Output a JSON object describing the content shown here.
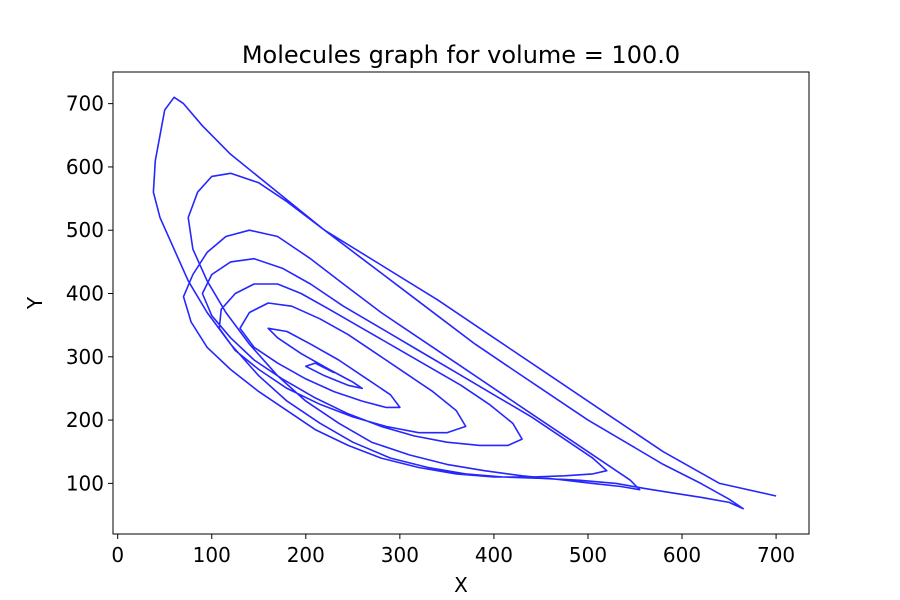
{
  "chart_data": {
    "type": "line",
    "title": "Molecules graph for volume = 100.0",
    "xlabel": "X",
    "ylabel": "Y",
    "xlim": [
      -5,
      735
    ],
    "ylim": [
      20,
      750
    ],
    "xticks": [
      0,
      100,
      200,
      300,
      400,
      500,
      600,
      700
    ],
    "yticks": [
      100,
      200,
      300,
      400,
      500,
      600,
      700
    ],
    "grid": false,
    "line_color": "#0000ff",
    "series": [
      {
        "x": [
          700,
          640,
          580,
          520,
          460,
          400,
          340,
          280,
          220,
          170,
          120,
          90,
          70,
          60,
          50,
          45,
          40,
          38,
          45,
          60,
          75,
          95,
          120,
          150,
          180,
          215,
          250,
          290,
          330,
          370,
          410,
          450,
          490,
          530,
          560,
          590,
          620,
          650,
          665,
          650,
          620,
          580,
          540,
          500,
          460,
          420,
          380,
          340,
          300,
          260,
          220,
          180,
          150,
          120,
          100,
          85,
          75,
          80,
          95,
          115,
          140,
          170,
          200,
          235,
          270,
          310,
          350,
          390,
          430,
          470,
          505,
          535,
          555,
          545,
          515,
          480,
          440,
          400,
          360,
          320,
          280,
          240,
          205,
          170,
          140,
          115,
          95,
          80,
          70,
          78,
          95,
          120,
          150,
          180,
          210,
          245,
          280,
          320,
          360,
          400,
          440,
          475,
          505,
          520,
          505,
          475,
          440,
          400,
          360,
          320,
          280,
          240,
          205,
          175,
          145,
          120,
          100,
          90,
          100,
          120,
          145,
          175,
          210,
          245,
          280,
          315,
          350,
          385,
          415,
          430,
          420,
          395,
          365,
          330,
          295,
          260,
          225,
          195,
          170,
          145,
          125,
          110,
          108,
          125,
          150,
          180,
          215,
          250,
          285,
          320,
          350,
          370,
          360,
          335,
          305,
          275,
          245,
          215,
          185,
          160,
          140,
          130,
          145,
          170,
          200,
          230,
          260,
          285,
          300,
          290,
          265,
          235,
          205,
          180,
          160,
          170,
          195,
          225,
          250,
          260,
          245,
          220,
          200,
          210,
          230
        ],
        "y": [
          80,
          100,
          150,
          210,
          270,
          330,
          390,
          445,
          500,
          560,
          620,
          665,
          700,
          710,
          690,
          650,
          610,
          560,
          520,
          470,
          420,
          370,
          320,
          270,
          230,
          195,
          165,
          140,
          125,
          115,
          110,
          108,
          105,
          100,
          92,
          85,
          78,
          70,
          60,
          75,
          100,
          130,
          165,
          200,
          240,
          280,
          320,
          365,
          410,
          455,
          500,
          545,
          575,
          590,
          585,
          560,
          520,
          470,
          420,
          370,
          320,
          270,
          230,
          195,
          165,
          145,
          130,
          120,
          112,
          106,
          100,
          95,
          90,
          105,
          135,
          170,
          210,
          250,
          290,
          330,
          370,
          415,
          455,
          490,
          500,
          490,
          465,
          430,
          395,
          355,
          315,
          280,
          245,
          215,
          185,
          160,
          140,
          125,
          115,
          110,
          110,
          112,
          115,
          120,
          140,
          170,
          205,
          240,
          275,
          310,
          345,
          380,
          415,
          440,
          455,
          450,
          430,
          400,
          365,
          330,
          295,
          265,
          235,
          210,
          190,
          175,
          165,
          160,
          160,
          170,
          195,
          225,
          255,
          285,
          315,
          345,
          375,
          400,
          415,
          415,
          400,
          375,
          345,
          310,
          280,
          250,
          225,
          205,
          190,
          180,
          180,
          190,
          215,
          245,
          275,
          305,
          335,
          360,
          380,
          385,
          370,
          345,
          315,
          290,
          265,
          245,
          230,
          220,
          220,
          240,
          265,
          295,
          320,
          340,
          345,
          330,
          305,
          280,
          260,
          250,
          255,
          270,
          285,
          290,
          275
        ]
      }
    ]
  }
}
